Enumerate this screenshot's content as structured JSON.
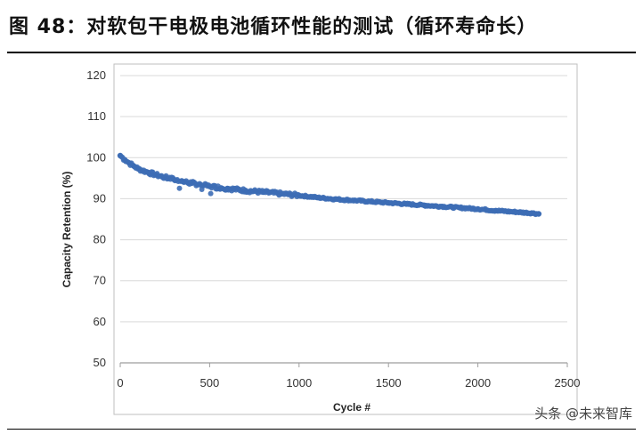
{
  "header": {
    "title": "图 48：对软包干电极电池循环性能的测试（循环寿命长）"
  },
  "watermark": "头条 @未来智库",
  "colors": {
    "series": "#3d6db5",
    "grid": "#d9d9d9",
    "axis": "#9e9e9e"
  },
  "chart_data": {
    "type": "scatter",
    "title": "",
    "xlabel": "Cycle #",
    "ylabel": "Capacity Retention (%)",
    "xlim": [
      0,
      2500
    ],
    "ylim": [
      50,
      120
    ],
    "xticks": [
      0,
      500,
      1000,
      1500,
      2000,
      2500
    ],
    "yticks": [
      50,
      60,
      70,
      80,
      90,
      100,
      110,
      120
    ],
    "grid": "horizontal",
    "series": [
      {
        "x": [
          0,
          25,
          50,
          75,
          100,
          150,
          200,
          250,
          300,
          350,
          400,
          450,
          500,
          600,
          700,
          800,
          900,
          1000,
          1100,
          1200,
          1300,
          1400,
          1500,
          1600,
          1700,
          1800,
          1900,
          2000,
          2100,
          2200,
          2300,
          2340
        ],
        "y": [
          100.5,
          99.5,
          98.7,
          98.0,
          97.3,
          96.5,
          95.8,
          95.2,
          94.7,
          94.2,
          93.8,
          93.4,
          93.0,
          92.5,
          92.0,
          91.6,
          91.2,
          90.8,
          90.3,
          89.9,
          89.6,
          89.3,
          89.0,
          88.7,
          88.4,
          88.1,
          87.8,
          87.5,
          87.1,
          86.8,
          86.5,
          86.3
        ]
      }
    ]
  }
}
